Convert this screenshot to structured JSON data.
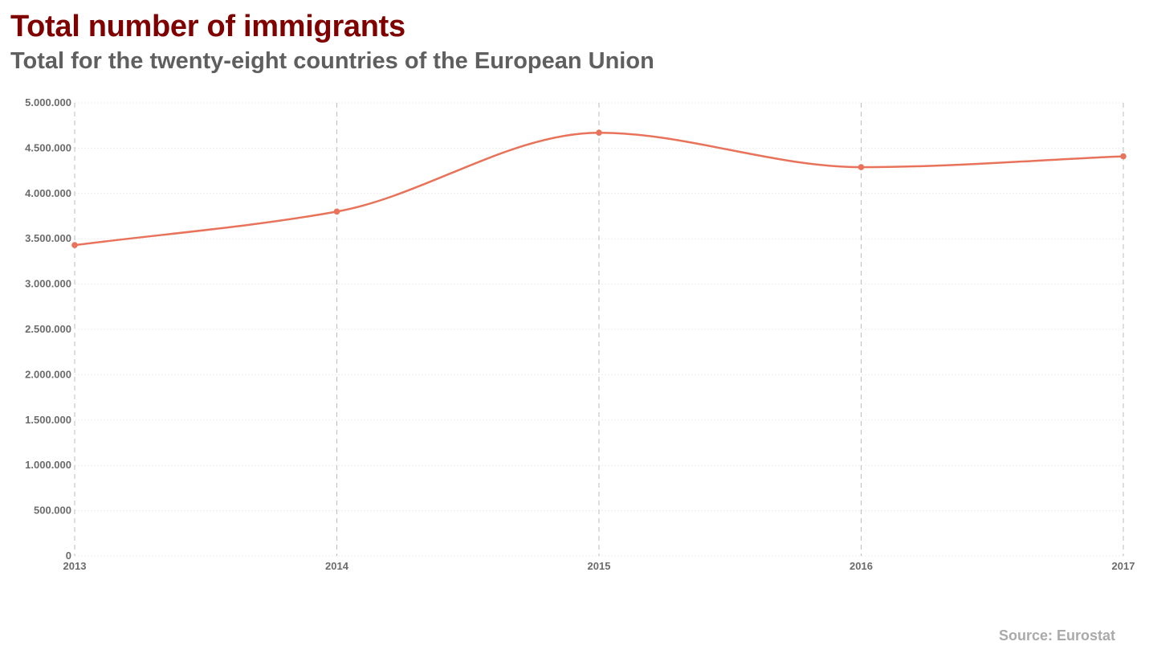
{
  "header": {
    "title": "Total number of immigrants",
    "subtitle": "Total for the twenty-eight countries of the European Union"
  },
  "footer": {
    "source": "Source: Eurostat"
  },
  "colors": {
    "title": "#800000",
    "subtitle": "#5f5f5f",
    "series": "#e8735a",
    "source": "#aaaaaa",
    "tick_labels": "#6b6b6b"
  },
  "chart_data": {
    "type": "line",
    "title": "Total number of immigrants",
    "subtitle": "Total for the twenty-eight countries of the European Union",
    "xlabel": "",
    "ylabel": "",
    "x": [
      "2013",
      "2014",
      "2015",
      "2016",
      "2017"
    ],
    "series": [
      {
        "values": [
          3430000,
          3800000,
          4670000,
          4290000,
          4410000
        ]
      }
    ],
    "ylim": [
      0,
      5000000
    ],
    "y_ticks": [
      0,
      500000,
      1000000,
      1500000,
      2000000,
      2500000,
      3000000,
      3500000,
      4000000,
      4500000,
      5000000
    ],
    "y_tick_labels": [
      "0",
      "500.000",
      "1.000.000",
      "1.500.000",
      "2.000.000",
      "2.500.000",
      "3.000.000",
      "3.500.000",
      "4.000.000",
      "4.500.000",
      "5.000.000"
    ],
    "x_tick_labels": [
      "2013",
      "2014",
      "2015",
      "2016",
      "2017"
    ],
    "grid": true,
    "smooth": true,
    "markers": true,
    "legend": "none"
  }
}
